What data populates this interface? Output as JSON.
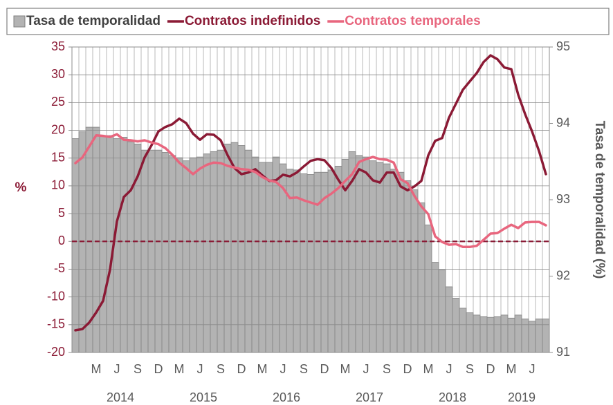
{
  "chart_data": {
    "type": "combo",
    "ylabel": "%",
    "y2label": "Tasa de temporalidad (%)",
    "categories": [
      null,
      null,
      null,
      "M",
      null,
      null,
      "J",
      null,
      null,
      "S",
      null,
      null,
      "D",
      null,
      null,
      "M",
      null,
      null,
      "J",
      null,
      null,
      "S",
      null,
      null,
      "D",
      null,
      null,
      "M",
      null,
      null,
      "J",
      null,
      null,
      "S",
      null,
      null,
      "D",
      null,
      null,
      "M",
      null,
      null,
      "J",
      null,
      null,
      "S",
      null,
      null,
      "D",
      null,
      null,
      "M",
      null,
      null,
      "J",
      null,
      null,
      "S",
      null,
      null,
      "D",
      null,
      null,
      "M",
      null,
      null,
      "J",
      null,
      null
    ],
    "years": [
      "2014",
      "2015",
      "2016",
      "2017",
      "2018",
      "2019"
    ],
    "ylim": [
      -20,
      35
    ],
    "yticks": [
      -20,
      -15,
      -10,
      -5,
      0,
      5,
      10,
      15,
      20,
      25,
      30,
      35
    ],
    "y2lim": [
      91,
      95
    ],
    "y2ticks": [
      91,
      92,
      93,
      94,
      95
    ],
    "grid": true,
    "legend": "top",
    "reference_lines": [
      {
        "value": 0,
        "color": "#8b1a35",
        "style": "dashed"
      }
    ],
    "series": [
      {
        "name": "Tasa de temporalidad",
        "type": "bar",
        "axis": "y2",
        "color": "#b3b3b3",
        "values": [
          93.8,
          93.89,
          93.95,
          93.95,
          93.84,
          93.84,
          93.8,
          93.82,
          93.76,
          93.73,
          93.65,
          93.65,
          93.65,
          93.62,
          93.58,
          93.55,
          93.51,
          93.55,
          93.56,
          93.6,
          93.63,
          93.65,
          93.73,
          93.75,
          93.71,
          93.65,
          93.56,
          93.49,
          93.49,
          93.56,
          93.47,
          93.4,
          93.39,
          93.34,
          93.33,
          93.36,
          93.36,
          93.39,
          93.44,
          93.53,
          93.63,
          93.58,
          93.56,
          93.51,
          93.49,
          93.47,
          93.4,
          93.36,
          93.25,
          93.13,
          92.96,
          92.67,
          92.18,
          92.08,
          91.86,
          91.71,
          91.58,
          91.52,
          91.49,
          91.47,
          91.46,
          91.47,
          91.49,
          91.45,
          91.49,
          91.44,
          91.41,
          91.44,
          91.44
        ]
      },
      {
        "name": "Contratos indefinidos",
        "type": "line",
        "axis": "y",
        "color": "#8b1a35",
        "values": [
          -16.0,
          -15.8,
          -14.6,
          -12.8,
          -10.7,
          -5.1,
          3.6,
          8.0,
          9.2,
          11.7,
          15.1,
          17.3,
          19.8,
          20.6,
          21.1,
          22.1,
          21.3,
          19.4,
          18.3,
          19.3,
          19.2,
          18.2,
          15.5,
          13.2,
          12.1,
          12.4,
          13.0,
          11.9,
          10.9,
          11.0,
          12.0,
          11.7,
          12.4,
          13.5,
          14.5,
          14.8,
          14.6,
          13.2,
          11.1,
          9.2,
          10.9,
          13.0,
          12.4,
          11.0,
          10.6,
          12.4,
          12.4,
          9.9,
          9.2,
          9.9,
          10.9,
          15.5,
          18.1,
          18.6,
          22.3,
          24.8,
          27.3,
          28.8,
          30.3,
          32.3,
          33.5,
          32.8,
          31.3,
          31.0,
          26.4,
          22.9,
          19.8,
          16.3,
          12.1
        ]
      },
      {
        "name": "Contratos temporales",
        "type": "line",
        "axis": "y",
        "color": "#e8667e",
        "values": [
          14.1,
          15.1,
          17.1,
          19.1,
          19.0,
          18.8,
          19.3,
          18.3,
          18.2,
          18.0,
          18.2,
          17.8,
          17.5,
          16.8,
          15.6,
          14.2,
          13.2,
          12.1,
          13.1,
          13.8,
          14.2,
          14.1,
          13.6,
          13.3,
          13.0,
          12.9,
          12.5,
          11.6,
          11.0,
          10.7,
          9.6,
          7.8,
          7.9,
          7.4,
          7.0,
          6.6,
          7.8,
          8.6,
          9.6,
          10.9,
          12.1,
          14.3,
          14.8,
          15.2,
          14.8,
          14.7,
          14.2,
          11.2,
          10.5,
          8.2,
          6.3,
          4.9,
          0.9,
          -0.1,
          -0.6,
          -0.5,
          -1.0,
          -1.0,
          -0.8,
          0.3,
          1.4,
          1.5,
          2.3,
          3.0,
          2.4,
          3.4,
          3.5,
          3.5,
          2.9
        ]
      }
    ]
  }
}
